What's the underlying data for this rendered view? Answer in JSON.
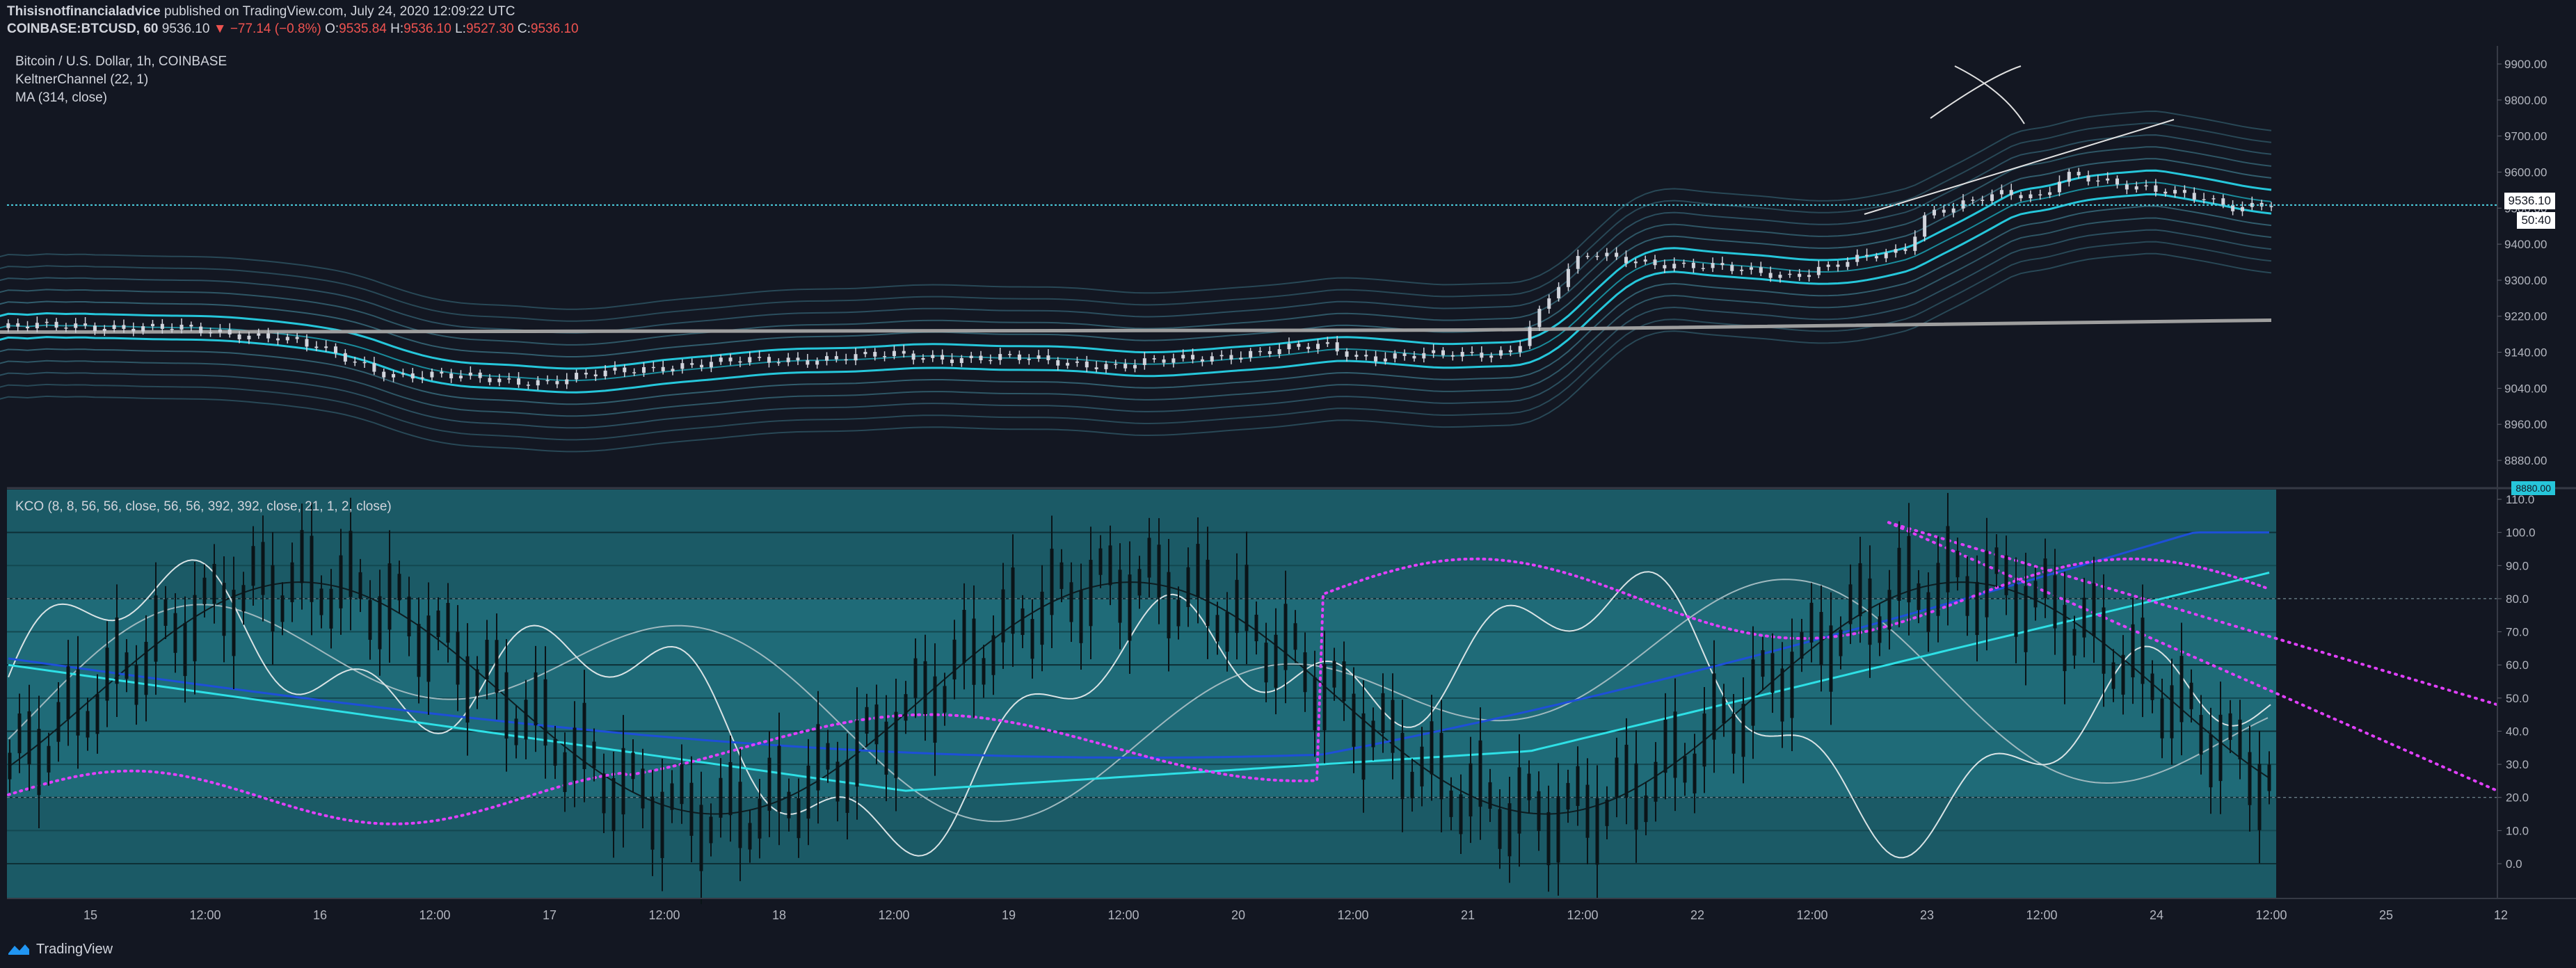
{
  "header": {
    "author": "Thisisnotfinancialadvice",
    "published_text": "published on TradingView.com, July 24, 2020 12:09:22 UTC",
    "symbol": "COINBASE:BTCUSD, 60",
    "last": "9536.10",
    "change": "−77.14 (−0.8%)",
    "o_label": "O:",
    "o_value": "9535.84",
    "h_label": "H:",
    "h_value": "9536.10",
    "l_label": "L:",
    "l_value": "9527.30",
    "c_label": "C:",
    "c_value": "9536.10"
  },
  "legend": {
    "title": "Bitcoin / U.S. Dollar, 1h, COINBASE",
    "keltner": "KeltnerChannel (22, 1)",
    "ma": "MA (314, close)",
    "kco": "KCO (8, 8, 56, 56, close, 56, 56, 392, 392, close, 21, 1, 2, close)"
  },
  "price_badge": {
    "value": "9536.10",
    "countdown": "50:40",
    "lower_badge": "8880.00"
  },
  "footer": {
    "brand": "TradingView"
  },
  "colors": {
    "background": "#131722",
    "band": "#26c6da",
    "band_faint": "#4fa3b8",
    "candle": "#d1d4dc",
    "ma": "#9e9e9e",
    "osc_bg": "#1b5a66",
    "magenta": "#e040fb",
    "osc_blue": "#1e4fd8",
    "osc_cyan": "#2ee0e6"
  },
  "chart_data": [
    {
      "type": "candlestick",
      "title": "Bitcoin / U.S. Dollar, 1h, COINBASE",
      "series": [
        {
          "name": "KeltnerChannel (22, 1)"
        },
        {
          "name": "MA (314, close)"
        }
      ],
      "y_ticks": [
        "9900.00",
        "9800.00",
        "9700.00",
        "9600.00",
        "9500.00",
        "9400.00",
        "9300.00",
        "9220.00",
        "9140.00",
        "9040.00",
        "8960.00",
        "8880.00"
      ],
      "x_ticks": [
        "15",
        "12:00",
        "16",
        "12:00",
        "17",
        "12:00",
        "18",
        "12:00",
        "19",
        "12:00",
        "20",
        "12:00",
        "21",
        "12:00",
        "22",
        "12:00",
        "23",
        "12:00",
        "24",
        "12:00",
        "25",
        "12"
      ],
      "last_price": 9536.1,
      "close_path": {
        "x_day": [
          14.6,
          15.0,
          15.5,
          15.8,
          16.0,
          16.3,
          16.6,
          17.0,
          17.5,
          18.0,
          18.5,
          19.0,
          19.5,
          20.0,
          20.4,
          20.5,
          21.0,
          21.2,
          21.35,
          21.5,
          21.7,
          22.0,
          22.4,
          22.9,
          23.0,
          23.3,
          23.5,
          23.6,
          23.7,
          23.9,
          24.0,
          24.2,
          24.35,
          24.5
        ],
        "close": [
          9225,
          9232,
          9218,
          9205,
          9170,
          9110,
          9100,
          9090,
          9130,
          9145,
          9155,
          9148,
          9130,
          9160,
          9180,
          9155,
          9155,
          9170,
          9300,
          9410,
          9400,
          9380,
          9360,
          9420,
          9520,
          9560,
          9555,
          9620,
          9610,
          9575,
          9570,
          9560,
          9530,
          9536
        ]
      }
    },
    {
      "type": "line",
      "title": "KCO (8, 8, 56, 56, close, 56, 56, 392, 392, close, 21, 1, 2, close)",
      "y_ticks": [
        "110.0",
        "100.0",
        "90.0",
        "80.0",
        "70.0",
        "60.0",
        "50.0",
        "40.0",
        "30.0",
        "20.0",
        "10.0",
        "0.0"
      ],
      "levels": [
        80,
        20
      ],
      "ylim": [
        0,
        110
      ]
    }
  ]
}
